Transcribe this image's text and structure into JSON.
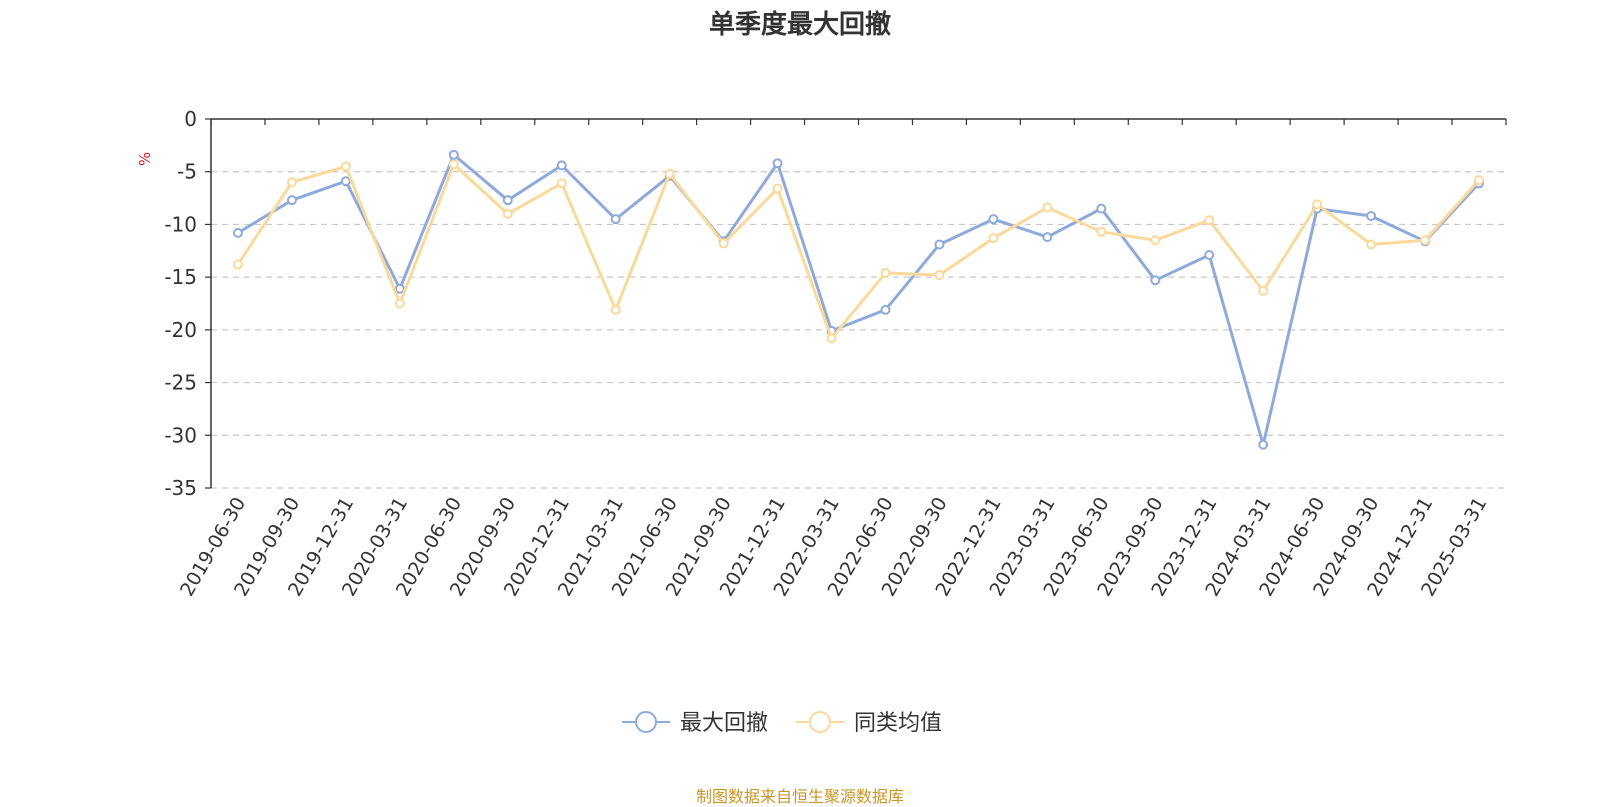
{
  "chart_data": {
    "type": "line",
    "title": "单季度最大回撤",
    "ylabel": "%",
    "xlabel": "",
    "ylim": [
      -35,
      0
    ],
    "yticks": [
      0,
      -5,
      -10,
      -15,
      -20,
      -25,
      -30,
      -35
    ],
    "grid": true,
    "legend_position": "bottom-center",
    "categories": [
      "2019-06-30",
      "2019-09-30",
      "2019-12-31",
      "2020-03-31",
      "2020-06-30",
      "2020-09-30",
      "2020-12-31",
      "2021-03-31",
      "2021-06-30",
      "2021-09-30",
      "2021-12-31",
      "2022-03-31",
      "2022-06-30",
      "2022-09-30",
      "2022-12-31",
      "2023-03-31",
      "2023-06-30",
      "2023-09-30",
      "2023-12-31",
      "2024-03-31",
      "2024-06-30",
      "2024-09-30",
      "2024-12-31",
      "2025-03-31"
    ],
    "series": [
      {
        "name": "最大回撤",
        "color": "#8eaadb",
        "values": [
          -10.8,
          -7.7,
          -5.9,
          -16.1,
          -3.4,
          -7.7,
          -4.4,
          -9.5,
          -5.4,
          -11.6,
          -4.2,
          -20.1,
          -18.1,
          -11.9,
          -9.5,
          -11.2,
          -8.5,
          -15.3,
          -12.9,
          -30.9,
          -8.5,
          -9.2,
          -11.6,
          -6.1
        ]
      },
      {
        "name": "同类均值",
        "color": "#fbd99a",
        "values": [
          -13.8,
          -6.0,
          -4.5,
          -17.5,
          -4.3,
          -9.0,
          -6.1,
          -18.1,
          -5.2,
          -11.8,
          -6.6,
          -20.8,
          -14.6,
          -14.8,
          -11.3,
          -8.4,
          -10.7,
          -11.5,
          -9.6,
          -16.3,
          -8.1,
          -11.9,
          -11.5,
          -5.8
        ]
      }
    ]
  },
  "source_text": "制图数据来自恒生聚源数据库"
}
